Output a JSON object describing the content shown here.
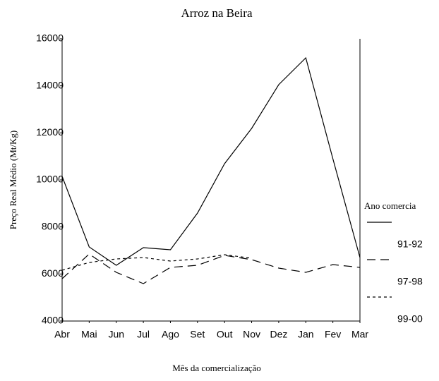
{
  "chart_data": {
    "type": "line",
    "title": "Arroz na Beira",
    "xlabel": "Mês da comercialização",
    "ylabel": "Preço Real Médio (Mt/Kg)",
    "legend_title": "Ano comercia",
    "categories": [
      "Abr",
      "Mai",
      "Jun",
      "Jul",
      "Ago",
      "Set",
      "Out",
      "Nov",
      "Dez",
      "Jan",
      "Fev",
      "Mar"
    ],
    "series": [
      {
        "name": "91-92",
        "color": "#000000",
        "linestyle": "solid",
        "values": [
          10150,
          7150,
          6370,
          7120,
          7030,
          8590,
          10690,
          12190,
          14050,
          15190,
          10900,
          6700
        ]
      },
      {
        "name": "97-98",
        "color": "#000000",
        "linestyle": "dashed",
        "values": [
          5800,
          6850,
          6070,
          5590,
          6280,
          6370,
          6790,
          6610,
          6250,
          6070,
          6400,
          6280
        ]
      },
      {
        "name": "99-00",
        "color": "#000000",
        "linestyle": "dotted",
        "values": [
          6160,
          6490,
          6640,
          6700,
          6550,
          6640,
          6820,
          6670,
          null,
          null,
          null,
          null
        ]
      }
    ],
    "ylim": [
      4000,
      16000
    ],
    "yticks": [
      4000,
      6000,
      8000,
      10000,
      12000,
      14000,
      16000
    ]
  }
}
